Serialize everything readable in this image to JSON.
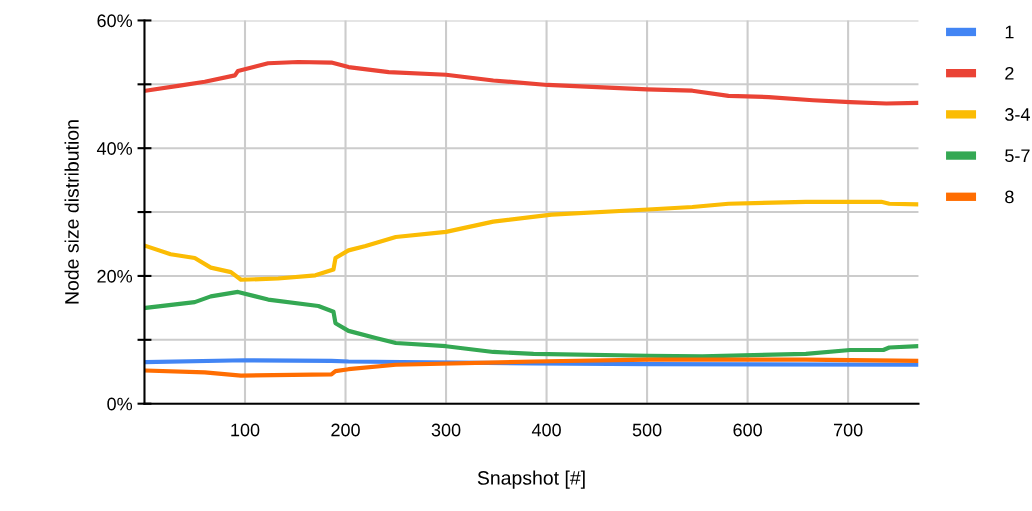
{
  "chart_data": {
    "type": "line",
    "xlabel": "Snapshot [#]",
    "ylabel": "Node size distribution",
    "xlim": [
      0,
      770
    ],
    "xticks": [
      100,
      200,
      300,
      400,
      500,
      600,
      700
    ],
    "ylim": [
      0,
      60
    ],
    "yticks": [
      {
        "value": 0,
        "label": "0%"
      },
      {
        "value": 10,
        "label": null
      },
      {
        "value": 20,
        "label": "20%"
      },
      {
        "value": 30,
        "label": null
      },
      {
        "value": 40,
        "label": "40%"
      },
      {
        "value": 50,
        "label": null
      },
      {
        "value": 60,
        "label": "60%"
      }
    ],
    "grid": true,
    "legend": "right",
    "marker": "none",
    "line_style": "solid",
    "series": [
      {
        "name": "1",
        "color": "#4285f4",
        "x": [
          1,
          100,
          186,
          203,
          387,
          501,
          768
        ],
        "values": [
          6.5,
          6.8,
          6.7,
          6.6,
          6.3,
          6.2,
          6.1
        ]
      },
      {
        "name": "2",
        "color": "#ea4335",
        "x": [
          1,
          35,
          60,
          90,
          93,
          123,
          153,
          186,
          203,
          243,
          300,
          347,
          401,
          500,
          545,
          581,
          621,
          665,
          702,
          738,
          768
        ],
        "values": [
          49.0,
          49.8,
          50.4,
          51.4,
          52.1,
          53.3,
          53.5,
          53.4,
          52.7,
          51.9,
          51.5,
          50.6,
          49.9,
          49.2,
          49.0,
          48.2,
          48.0,
          47.5,
          47.2,
          47.0,
          47.1
        ]
      },
      {
        "name": "3-4",
        "color": "#fbbc04",
        "x": [
          1,
          26,
          50,
          66,
          86,
          96,
          133,
          170,
          188,
          190,
          203,
          220,
          250,
          300,
          347,
          405,
          501,
          545,
          581,
          658,
          733,
          741,
          768
        ],
        "values": [
          24.7,
          23.4,
          22.8,
          21.3,
          20.6,
          19.4,
          19.6,
          20.1,
          21.0,
          22.8,
          24.0,
          24.7,
          26.1,
          26.9,
          28.5,
          29.6,
          30.4,
          30.8,
          31.3,
          31.6,
          31.6,
          31.3,
          31.2
        ]
      },
      {
        "name": "5-7",
        "color": "#34a853",
        "x": [
          1,
          50,
          66,
          93,
          123,
          173,
          188,
          190,
          203,
          230,
          250,
          300,
          347,
          387,
          501,
          555,
          658,
          702,
          735,
          741,
          768
        ],
        "values": [
          15.0,
          15.9,
          16.8,
          17.5,
          16.3,
          15.3,
          14.4,
          12.6,
          11.4,
          10.3,
          9.5,
          9.0,
          8.1,
          7.8,
          7.5,
          7.4,
          7.8,
          8.4,
          8.4,
          8.8,
          9.0
        ]
      },
      {
        "name": "8",
        "color": "#ff6d01",
        "x": [
          1,
          60,
          96,
          186,
          190,
          203,
          250,
          387,
          501,
          658,
          768
        ],
        "values": [
          5.2,
          4.9,
          4.4,
          4.6,
          5.1,
          5.4,
          6.1,
          6.6,
          6.9,
          6.9,
          6.7
        ]
      }
    ]
  }
}
